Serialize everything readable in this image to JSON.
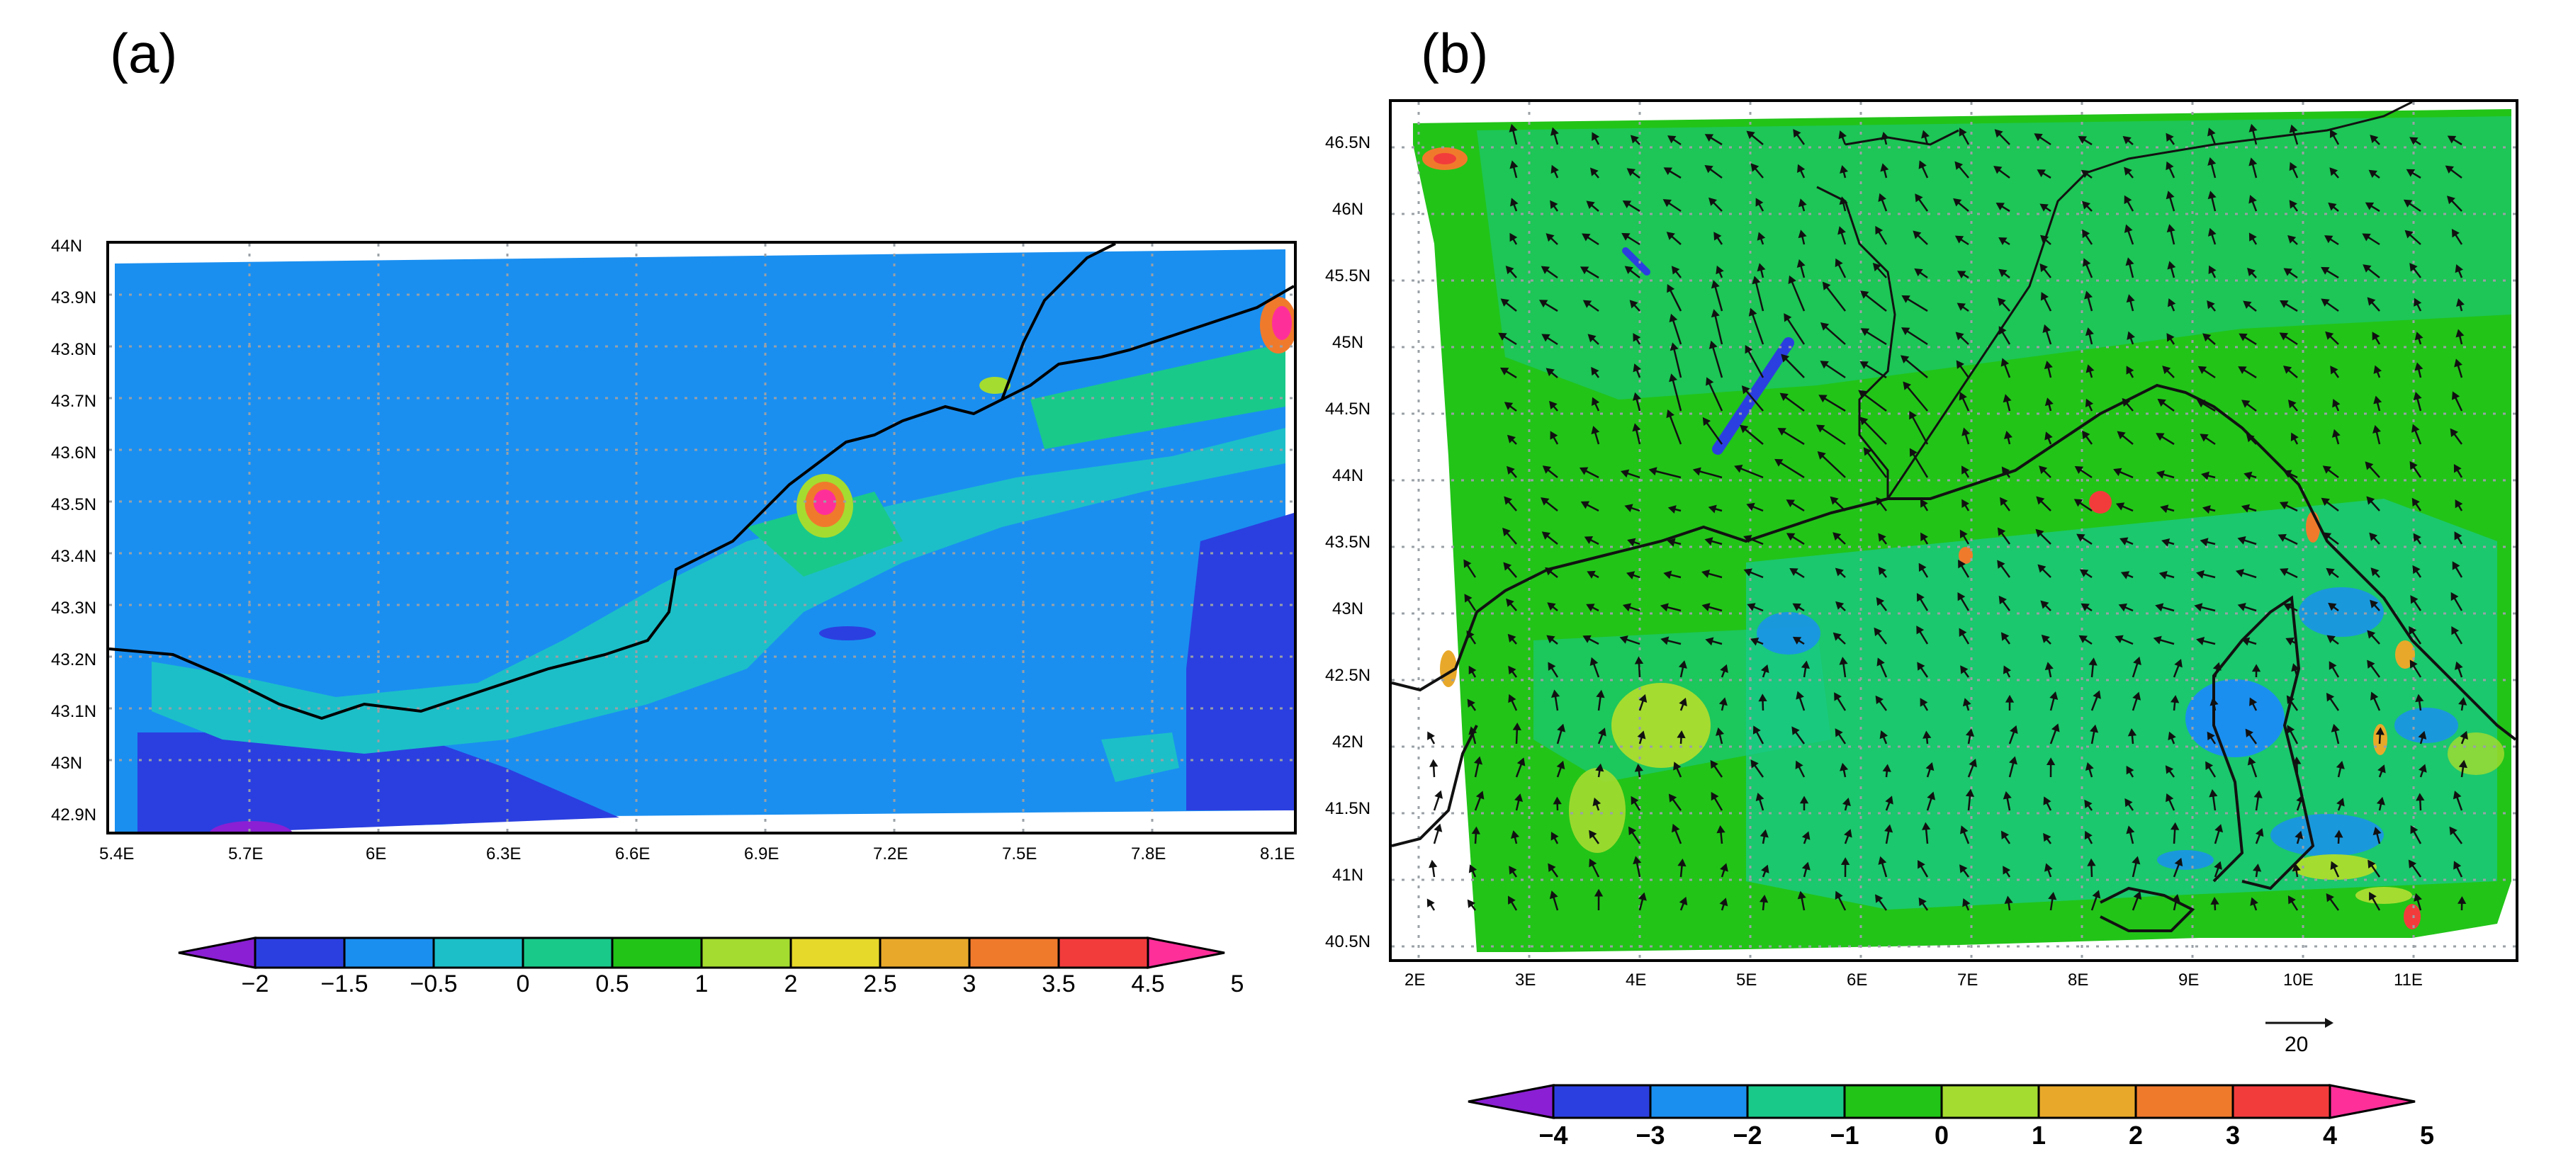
{
  "panels": [
    {
      "label": "(a)",
      "lat_ticks": [
        "44N",
        "43.9N",
        "43.8N",
        "43.7N",
        "43.6N",
        "43.5N",
        "43.4N",
        "43.3N",
        "43.2N",
        "43.1N",
        "43N",
        "42.9N"
      ],
      "lon_ticks": [
        "5.4E",
        "5.7E",
        "6E",
        "6.3E",
        "6.6E",
        "6.9E",
        "7.2E",
        "7.5E",
        "7.8E",
        "8.1E"
      ],
      "colorbar": {
        "labels": [
          "−2",
          "−1.5",
          "−0.5",
          "0",
          "0.5",
          "1",
          "2",
          "2.5",
          "3",
          "3.5",
          "4.5",
          "5"
        ],
        "colors": [
          "#8a1fd4",
          "#2b3fe0",
          "#1a8ff0",
          "#1cbfc8",
          "#19c98a",
          "#22c418",
          "#a5dc30",
          "#e6d92a",
          "#e8a92a",
          "#f07a2c",
          "#f23c3c",
          "#ff2f9a"
        ]
      }
    },
    {
      "label": "(b)",
      "lat_ticks": [
        "46.5N",
        "46N",
        "45.5N",
        "45N",
        "44.5N",
        "44N",
        "43.5N",
        "43N",
        "42.5N",
        "42N",
        "41.5N",
        "41N",
        "40.5N"
      ],
      "lon_ticks": [
        "2E",
        "3E",
        "4E",
        "5E",
        "6E",
        "7E",
        "8E",
        "9E",
        "10E",
        "11E"
      ],
      "vector_ref": "20",
      "colorbar": {
        "labels": [
          "−4",
          "−3",
          "−2",
          "−1",
          "0",
          "1",
          "2",
          "3",
          "4",
          "5"
        ],
        "colors": [
          "#8a1fd4",
          "#2b3fe0",
          "#1a8ff0",
          "#19c98a",
          "#22c418",
          "#a5dc30",
          "#e8a92a",
          "#f07a2c",
          "#f23c3c",
          "#ff2f9a"
        ]
      }
    }
  ]
}
